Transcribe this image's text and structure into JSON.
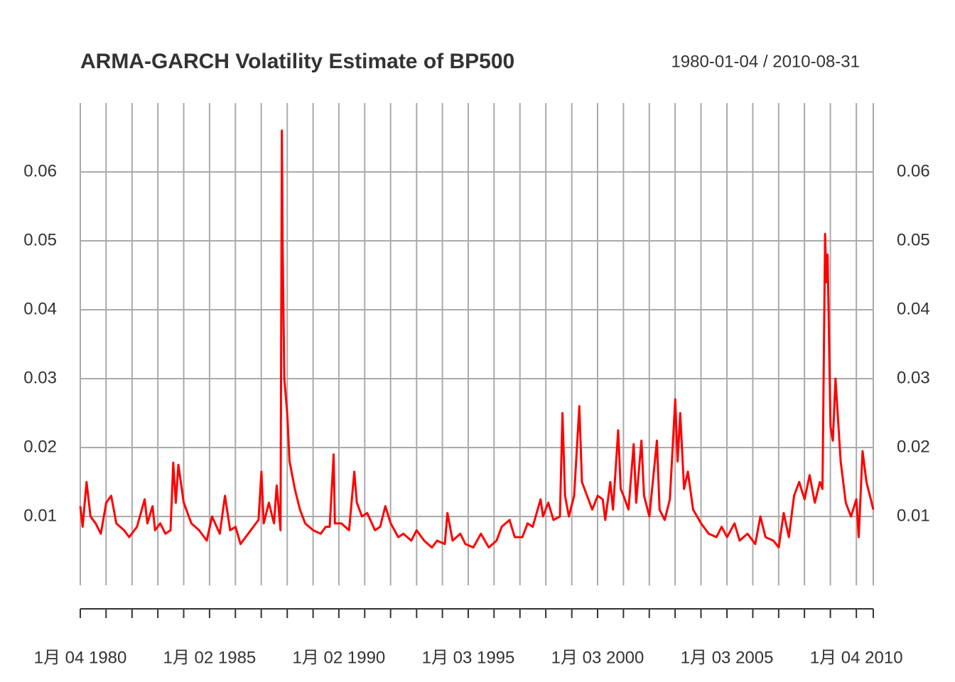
{
  "chart_data": {
    "type": "line",
    "title": "ARMA-GARCH Volatility Estimate of BP500",
    "date_range": "1980-01-04 / 2010-08-31",
    "color": "#ff0000",
    "xlim": [
      "1980-01-04",
      "2010-08-31"
    ],
    "ylim": [
      0,
      0.07
    ],
    "yticks": [
      0.01,
      0.02,
      0.03,
      0.04,
      0.05,
      0.06
    ],
    "xticks": [
      {
        "value": "1980-01-04",
        "label": "1月 04 1980"
      },
      {
        "value": "1985-01-02",
        "label": "1月 02 1985"
      },
      {
        "value": "1990-01-02",
        "label": "1月 02 1990"
      },
      {
        "value": "1995-01-03",
        "label": "1月 03 1995"
      },
      {
        "value": "2000-01-03",
        "label": "1月 03 2000"
      },
      {
        "value": "2005-01-03",
        "label": "1月 03 2005"
      },
      {
        "value": "2010-01-04",
        "label": "1月 04 2010"
      }
    ],
    "xminor": [
      "1981-01-02",
      "1982-01-04",
      "1983-01-03",
      "1984-01-03",
      "1986-01-02",
      "1987-01-02",
      "1988-01-04",
      "1989-01-03",
      "1991-01-02",
      "1992-01-02",
      "1993-01-04",
      "1994-01-03",
      "1996-01-02",
      "1997-01-02",
      "1998-01-02",
      "1999-01-04",
      "2001-01-02",
      "2002-01-02",
      "2003-01-02",
      "2004-01-02",
      "2006-01-03",
      "2007-01-03",
      "2008-01-02",
      "2009-01-02"
    ],
    "grid": true,
    "x": [
      "1980-01-04",
      "1980-02-06",
      "1980-04-01",
      "1980-05-27",
      "1980-08-08",
      "1980-10-20",
      "1981-01-04",
      "1981-03-15",
      "1981-05-27",
      "1981-09-13",
      "1981-11-24",
      "1982-03-15",
      "1982-07-01",
      "1982-08-08",
      "1982-10-20",
      "1982-11-24",
      "1983-02-06",
      "1983-04-20",
      "1983-07-01",
      "1983-08-08",
      "1983-09-13",
      "1983-10-20",
      "1984-01-04",
      "1984-04-20",
      "1984-08-08",
      "1984-11-24",
      "1985-02-06",
      "1985-05-27",
      "1985-08-08",
      "1985-10-20",
      "1986-01-04",
      "1986-03-15",
      "1986-07-01",
      "1986-09-13",
      "1986-11-24",
      "1987-01-04",
      "1987-02-06",
      "1987-04-20",
      "1987-07-01",
      "1987-08-08",
      "1987-10-01",
      "1987-10-20",
      "1987-10-30",
      "1987-11-24",
      "1988-01-04",
      "1988-02-06",
      "1988-04-20",
      "1988-07-01",
      "1988-09-13",
      "1989-01-04",
      "1989-04-20",
      "1989-07-01",
      "1989-08-26",
      "1989-10-20",
      "1989-11-07",
      "1990-02-06",
      "1990-05-27",
      "1990-08-08",
      "1990-09-13",
      "1990-11-24",
      "1991-02-06",
      "1991-05-27",
      "1991-08-08",
      "1991-10-20",
      "1992-01-04",
      "1992-04-20",
      "1992-07-01",
      "1992-10-20",
      "1993-01-04",
      "1993-04-20",
      "1993-08-08",
      "1993-10-20",
      "1994-02-06",
      "1994-03-15",
      "1994-05-27",
      "1994-09-13",
      "1994-11-24",
      "1995-03-15",
      "1995-07-01",
      "1995-10-20",
      "1996-02-06",
      "1996-04-20",
      "1996-08-08",
      "1996-10-20",
      "1997-02-06",
      "1997-04-20",
      "1997-07-01",
      "1997-10-20",
      "1997-11-24",
      "1998-02-06",
      "1998-04-20",
      "1998-07-20",
      "1998-08-26",
      "1998-10-01",
      "1998-11-24",
      "1999-02-06",
      "1999-04-20",
      "1999-05-27",
      "1999-08-08",
      "1999-10-20",
      "2000-01-04",
      "2000-03-15",
      "2000-04-20",
      "2000-07-01",
      "2000-08-08",
      "2000-10-20",
      "2000-11-24",
      "2001-01-04",
      "2001-03-15",
      "2001-05-27",
      "2001-07-01",
      "2001-09-13",
      "2001-10-20",
      "2002-01-04",
      "2002-04-20",
      "2002-05-27",
      "2002-08-08",
      "2002-10-20",
      "2003-01-04",
      "2003-02-06",
      "2003-03-15",
      "2003-05-08",
      "2003-07-01",
      "2003-09-13",
      "2004-01-04",
      "2004-04-20",
      "2004-08-08",
      "2004-10-20",
      "2005-01-04",
      "2005-04-20",
      "2005-07-01",
      "2005-10-20",
      "2006-02-06",
      "2006-04-20",
      "2006-07-01",
      "2006-10-20",
      "2007-01-04",
      "2007-03-15",
      "2007-05-27",
      "2007-08-08",
      "2007-10-20",
      "2008-01-04",
      "2008-03-15",
      "2008-05-27",
      "2008-08-08",
      "2008-09-13",
      "2008-10-20",
      "2008-11-07",
      "2008-11-24",
      "2009-01-04",
      "2009-02-06",
      "2009-03-15",
      "2009-05-27",
      "2009-08-08",
      "2009-10-20",
      "2010-01-04",
      "2010-02-06",
      "2010-04-01",
      "2010-05-27",
      "2010-08-08",
      "2010-08-31"
    ],
    "values": [
      0.0115,
      0.0085,
      0.015,
      0.01,
      0.009,
      0.0075,
      0.012,
      0.013,
      0.009,
      0.008,
      0.007,
      0.0085,
      0.0125,
      0.009,
      0.0115,
      0.008,
      0.009,
      0.0075,
      0.008,
      0.0178,
      0.012,
      0.0175,
      0.012,
      0.009,
      0.008,
      0.0065,
      0.01,
      0.0075,
      0.013,
      0.008,
      0.0085,
      0.006,
      0.0075,
      0.0085,
      0.0095,
      0.0165,
      0.009,
      0.012,
      0.009,
      0.0145,
      0.008,
      0.066,
      0.05,
      0.03,
      0.025,
      0.018,
      0.014,
      0.011,
      0.009,
      0.008,
      0.0075,
      0.0085,
      0.0085,
      0.019,
      0.009,
      0.009,
      0.008,
      0.0165,
      0.012,
      0.01,
      0.0105,
      0.008,
      0.0085,
      0.0115,
      0.009,
      0.007,
      0.0075,
      0.0065,
      0.008,
      0.0065,
      0.0055,
      0.0065,
      0.006,
      0.0105,
      0.0065,
      0.0075,
      0.006,
      0.0055,
      0.0075,
      0.0055,
      0.0065,
      0.0085,
      0.0095,
      0.007,
      0.007,
      0.009,
      0.0085,
      0.0125,
      0.01,
      0.012,
      0.0095,
      0.01,
      0.025,
      0.013,
      0.01,
      0.013,
      0.026,
      0.015,
      0.013,
      0.011,
      0.013,
      0.0125,
      0.0095,
      0.015,
      0.011,
      0.0225,
      0.014,
      0.013,
      0.011,
      0.0205,
      0.012,
      0.021,
      0.013,
      0.01,
      0.021,
      0.011,
      0.0095,
      0.0125,
      0.027,
      0.018,
      0.025,
      0.014,
      0.0165,
      0.011,
      0.009,
      0.0075,
      0.007,
      0.0085,
      0.007,
      0.009,
      0.0065,
      0.0075,
      0.006,
      0.01,
      0.007,
      0.0065,
      0.0055,
      0.0105,
      0.007,
      0.013,
      0.015,
      0.0125,
      0.016,
      0.012,
      0.015,
      0.014,
      0.051,
      0.044,
      0.048,
      0.023,
      0.021,
      0.03,
      0.018,
      0.012,
      0.01,
      0.0125,
      0.007,
      0.0195,
      0.015,
      0.012,
      0.011
    ]
  }
}
